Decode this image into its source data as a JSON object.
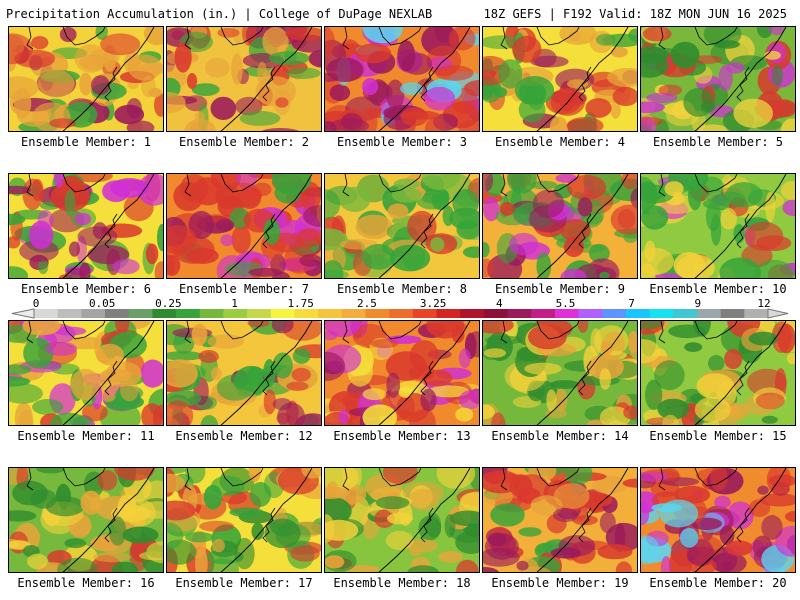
{
  "header": {
    "title": "Precipitation Accumulation (in.) | College of DuPage NEXLAB",
    "run_info": "18Z GEFS | F192 Valid: 18Z MON JUN 16 2025"
  },
  "members": [
    {
      "label": "Ensemble Member: 1",
      "base": "#f4d23a",
      "pattern": [
        "#e8a43a",
        "#d9392d",
        "#9b1a5c",
        "#35a43a"
      ],
      "intensity": 0.68
    },
    {
      "label": "Ensemble Member: 2",
      "base": "#f0c23e",
      "pattern": [
        "#e8a43a",
        "#d9392d",
        "#9b1a5c",
        "#35a43a"
      ],
      "intensity": 0.62
    },
    {
      "label": "Ensemble Member: 3",
      "base": "#f08a2d",
      "pattern": [
        "#d9392d",
        "#9b1a5c",
        "#d02fd5",
        "#58d7f1"
      ],
      "intensity": 0.86
    },
    {
      "label": "Ensemble Member: 4",
      "base": "#f5df3a",
      "pattern": [
        "#35a43a",
        "#e8a43a",
        "#d9392d",
        "#9b1a5c"
      ],
      "intensity": 0.56
    },
    {
      "label": "Ensemble Member: 5",
      "base": "#7ab83c",
      "pattern": [
        "#2f8c2e",
        "#f0d23d",
        "#d9392d",
        "#d02fd5"
      ],
      "intensity": 0.58
    },
    {
      "label": "Ensemble Member: 6",
      "base": "#f5df3a",
      "pattern": [
        "#35a43a",
        "#d9392d",
        "#9b1a5c",
        "#d02fd5"
      ],
      "intensity": 0.74
    },
    {
      "label": "Ensemble Member: 7",
      "base": "#f08a2d",
      "pattern": [
        "#d9392d",
        "#9b1a5c",
        "#35a43a",
        "#d02fd5"
      ],
      "intensity": 0.8
    },
    {
      "label": "Ensemble Member: 8",
      "base": "#f2c73c",
      "pattern": [
        "#35a43a",
        "#e8a43a",
        "#d9392d",
        "#7ab83c"
      ],
      "intensity": 0.63
    },
    {
      "label": "Ensemble Member: 9",
      "base": "#f3b13a",
      "pattern": [
        "#35a43a",
        "#d9392d",
        "#9b1a5c",
        "#d02fd5"
      ],
      "intensity": 0.74
    },
    {
      "label": "Ensemble Member: 10",
      "base": "#8fca40",
      "pattern": [
        "#35a43a",
        "#f4d23a",
        "#d9392d",
        "#d02fd5"
      ],
      "intensity": 0.64
    },
    {
      "label": "Ensemble Member: 11",
      "base": "#f5df3a",
      "pattern": [
        "#35a43a",
        "#e8a43a",
        "#d9392d",
        "#d02fd5"
      ],
      "intensity": 0.68
    },
    {
      "label": "Ensemble Member: 12",
      "base": "#f3c63c",
      "pattern": [
        "#35a43a",
        "#e8a43a",
        "#d9392d",
        "#9b1a5c"
      ],
      "intensity": 0.62
    },
    {
      "label": "Ensemble Member: 13",
      "base": "#f08a2d",
      "pattern": [
        "#d9392d",
        "#9b1a5c",
        "#f5df3a",
        "#d02fd5"
      ],
      "intensity": 0.84
    },
    {
      "label": "Ensemble Member: 14",
      "base": "#75b83c",
      "pattern": [
        "#2f8c2e",
        "#f4d23a",
        "#e8a43a",
        "#d9392d"
      ],
      "intensity": 0.5
    },
    {
      "label": "Ensemble Member: 15",
      "base": "#8fca40",
      "pattern": [
        "#2f8c2e",
        "#f4d23a",
        "#e8a43a",
        "#d9392d"
      ],
      "intensity": 0.52
    },
    {
      "label": "Ensemble Member: 16",
      "base": "#77b93c",
      "pattern": [
        "#2f8c2e",
        "#f4d23a",
        "#e8a43a",
        "#d9392d"
      ],
      "intensity": 0.56
    },
    {
      "label": "Ensemble Member: 17",
      "base": "#f5df3a",
      "pattern": [
        "#35a43a",
        "#e8a43a",
        "#d9392d",
        "#2f8c2e"
      ],
      "intensity": 0.52
    },
    {
      "label": "Ensemble Member: 18",
      "base": "#88c53f",
      "pattern": [
        "#2f8c2e",
        "#f4d23a",
        "#e8a43a",
        "#d9392d"
      ],
      "intensity": 0.55
    },
    {
      "label": "Ensemble Member: 19",
      "base": "#f2b03a",
      "pattern": [
        "#d9392d",
        "#9b1a5c",
        "#35a43a",
        "#e8a43a"
      ],
      "intensity": 0.74
    },
    {
      "label": "Ensemble Member: 20",
      "base": "#f18c2e",
      "pattern": [
        "#d9392d",
        "#9b1a5c",
        "#d02fd5",
        "#58d7f1"
      ],
      "intensity": 0.82
    }
  ],
  "colorbar": {
    "labels": [
      "0",
      "0.05",
      "0.25",
      "1",
      "1.75",
      "2.5",
      "3.25",
      "4",
      "5.5",
      "7",
      "9",
      "12"
    ],
    "colors": [
      "#d8d8d8",
      "#bdbdbd",
      "#a4a4a4",
      "#7f7f7f",
      "#6a9f6a",
      "#2f8c2e",
      "#35a43a",
      "#75b83c",
      "#9ccc42",
      "#c5d84b",
      "#f5f53d",
      "#f6dc3a",
      "#f4c53b",
      "#f2ad3b",
      "#f08a2d",
      "#ee6d2d",
      "#e84428",
      "#d32424",
      "#b0142c",
      "#8d1038",
      "#9b1a5c",
      "#c41e86",
      "#df2fd9",
      "#b060ff",
      "#5e94ff",
      "#18c5ff",
      "#16e1ee",
      "#40c7d3",
      "#99a7ad",
      "#7f7f7f",
      "#b0b0b0"
    ]
  }
}
